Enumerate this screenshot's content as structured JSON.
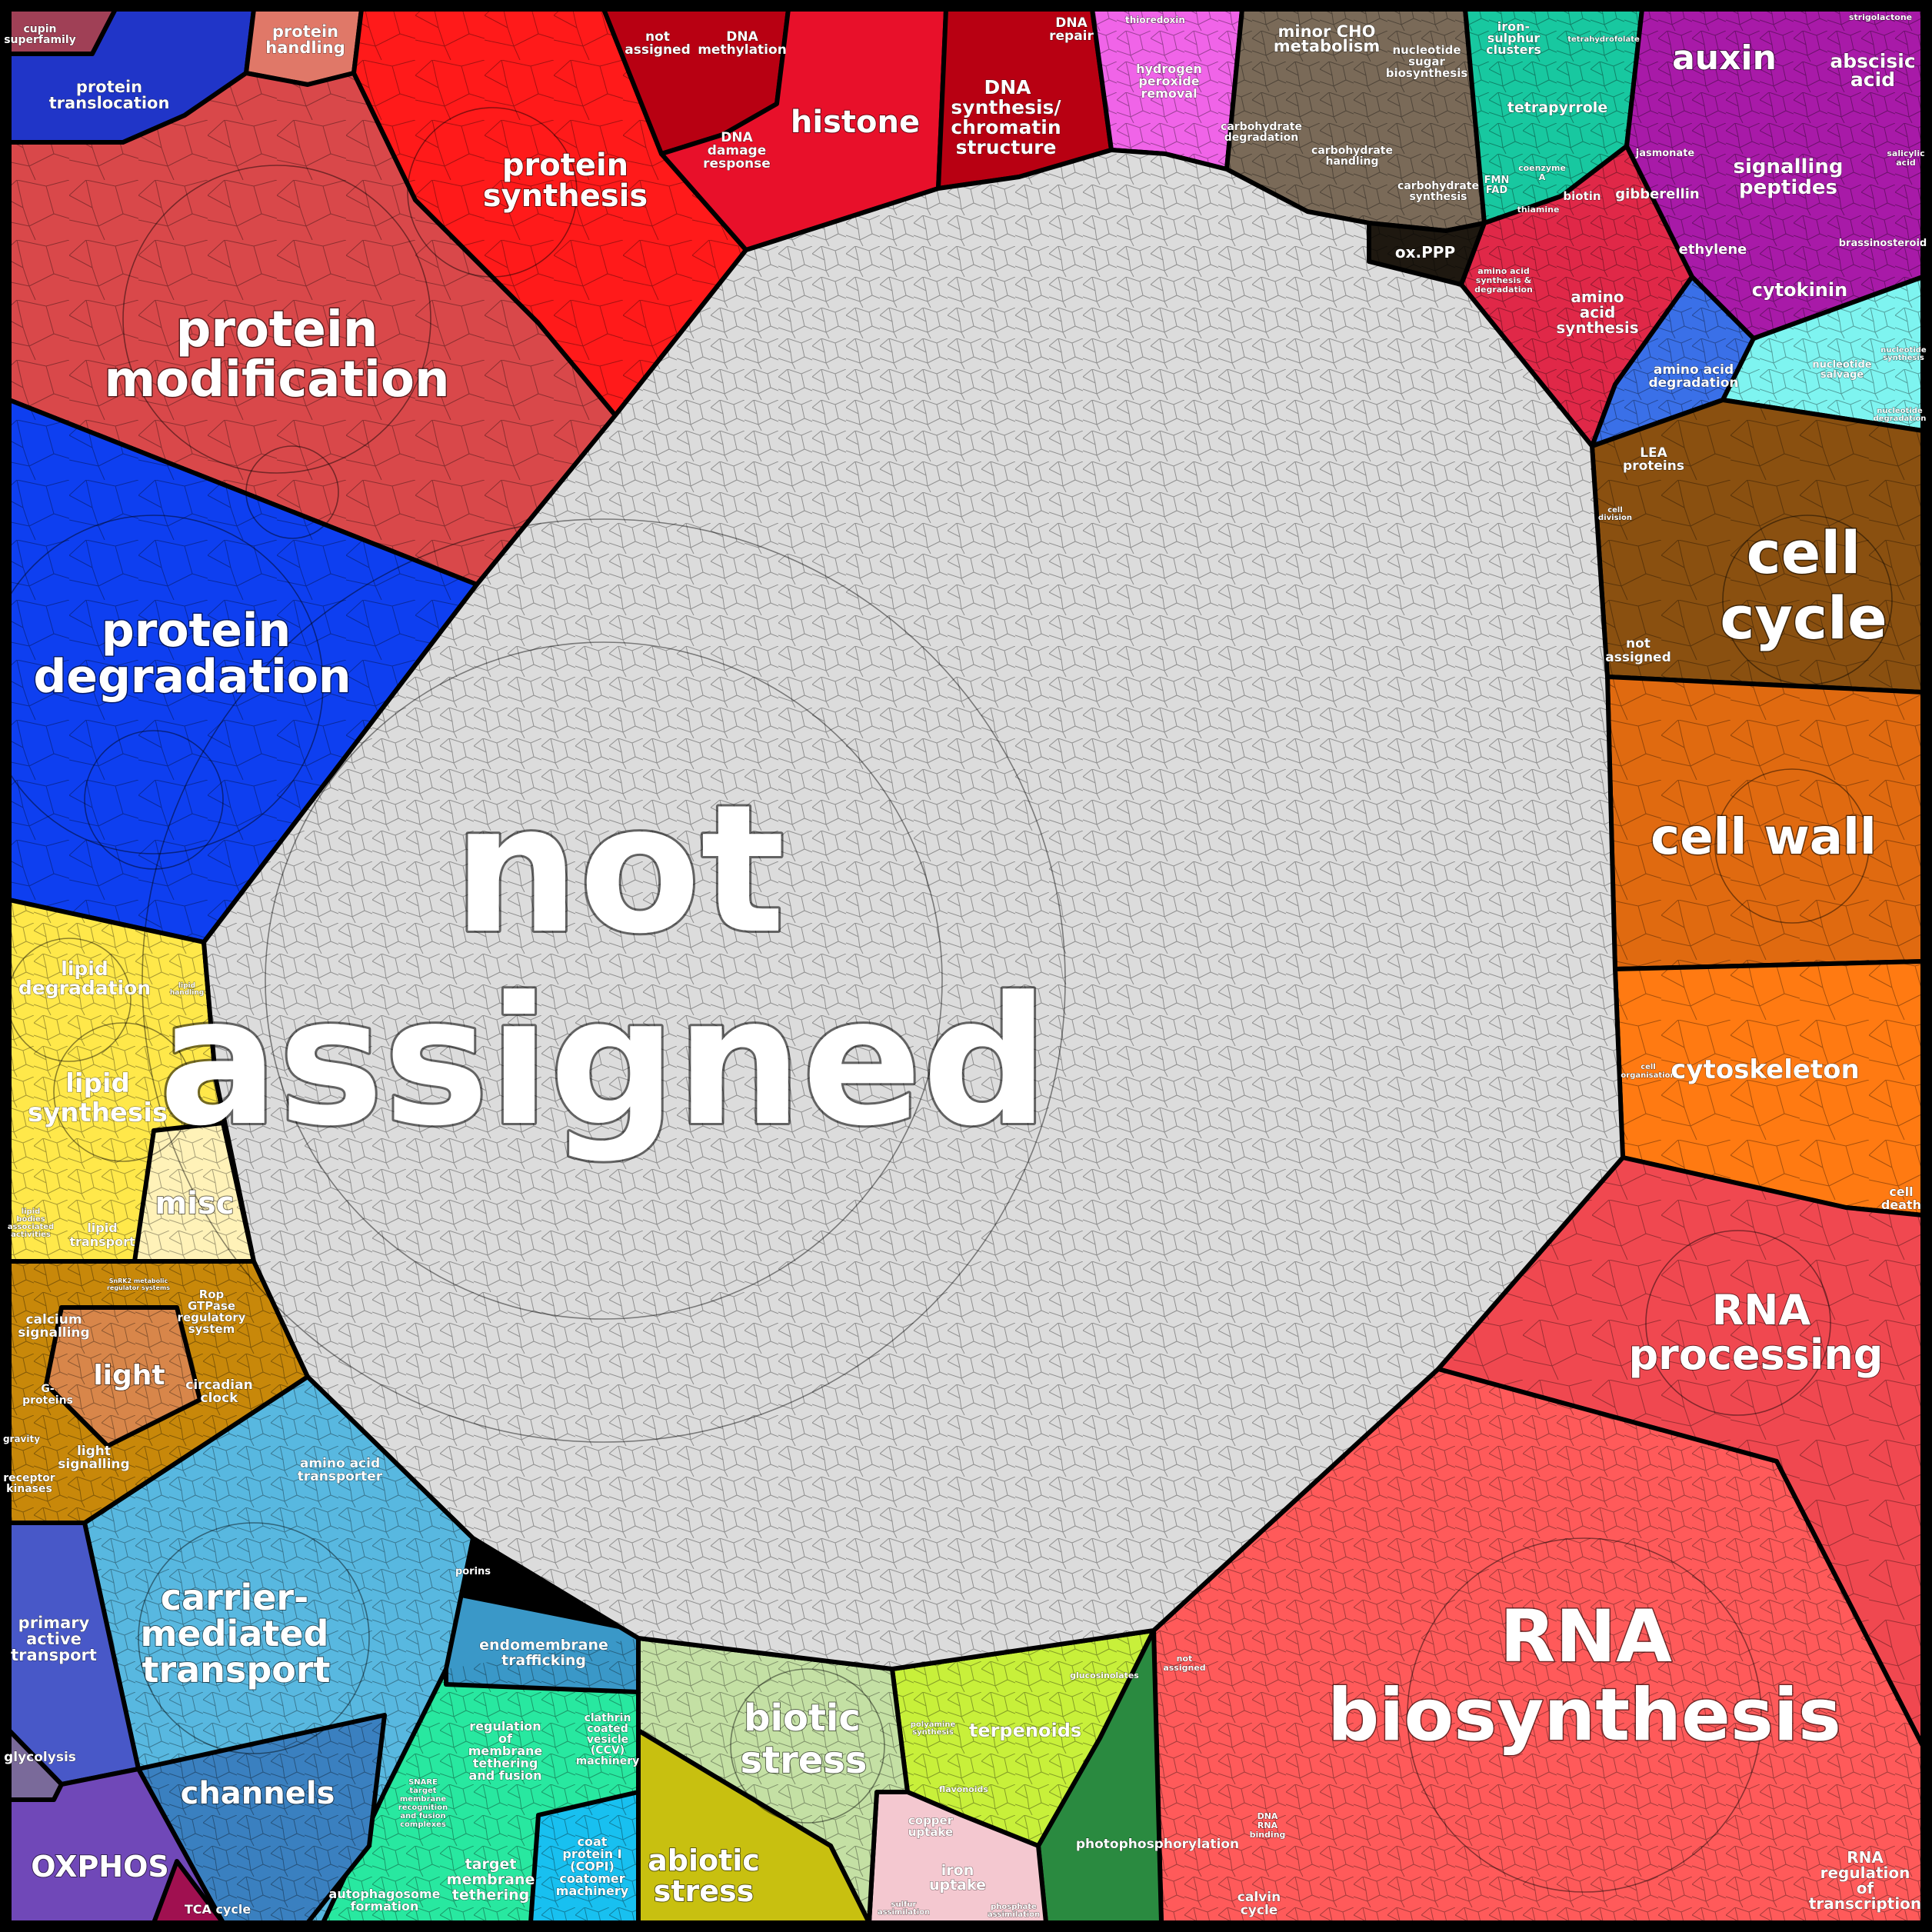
{
  "regions": [
    {
      "id": "not-assigned",
      "color": "#dcdcdc"
    },
    {
      "id": "protein-modification",
      "color": "#d9484a"
    },
    {
      "id": "protein-degradation",
      "color": "#0e3ff0"
    },
    {
      "id": "protein-synthesis",
      "color": "#ff1a1a"
    },
    {
      "id": "histone",
      "color": "#e8102a"
    },
    {
      "id": "dna",
      "color": "#b80012"
    },
    {
      "id": "protein-translocation",
      "color": "#2035c8"
    },
    {
      "id": "protein-handling",
      "color": "#e07868"
    },
    {
      "id": "cupin",
      "color": "#a04056"
    },
    {
      "id": "redox",
      "color": "#f064e8"
    },
    {
      "id": "minor-cho",
      "color": "#7a6a58"
    },
    {
      "id": "ox-ppp",
      "color": "#1e1810"
    },
    {
      "id": "coenzyme",
      "color": "#18c8a0"
    },
    {
      "id": "phytohormone",
      "color": "#a81aa8"
    },
    {
      "id": "amino-acid",
      "color": "#e02848"
    },
    {
      "id": "amino-acid-degradation",
      "color": "#3a70e8"
    },
    {
      "id": "nucleotide",
      "color": "#7ef4f0"
    },
    {
      "id": "cell-cycle",
      "color": "#8a5010"
    },
    {
      "id": "cell-wall",
      "color": "#e06a10"
    },
    {
      "id": "cytoskeleton",
      "color": "#ff7a12"
    },
    {
      "id": "rna-processing",
      "color": "#f04850"
    },
    {
      "id": "rna-biosynthesis",
      "color": "#ff5a5a"
    },
    {
      "id": "photosynthesis",
      "color": "#2a8a40"
    },
    {
      "id": "terpenoids",
      "color": "#c8f03a"
    },
    {
      "id": "secondary",
      "color": "#f4c8d0"
    },
    {
      "id": "biotic-stress",
      "color": "#c4e0a4"
    },
    {
      "id": "abiotic-stress",
      "color": "#c8c010"
    },
    {
      "id": "vesicle",
      "color": "#28e8a0"
    },
    {
      "id": "endomembrane",
      "color": "#3a98c8"
    },
    {
      "id": "coat-protein",
      "color": "#18c0f0"
    },
    {
      "id": "transport",
      "color": "#58b8e0"
    },
    {
      "id": "channels",
      "color": "#3a80c0"
    },
    {
      "id": "primary-transport",
      "color": "#4858c8"
    },
    {
      "id": "oxphos",
      "color": "#7048b8"
    },
    {
      "id": "glycolysis",
      "color": "#7a6a9a"
    },
    {
      "id": "tca",
      "color": "#a01050"
    },
    {
      "id": "signalling",
      "color": "#c8880a"
    },
    {
      "id": "light",
      "color": "#d8864a"
    },
    {
      "id": "lipid",
      "color": "#ffe84a"
    },
    {
      "id": "misc",
      "color": "#fff2b8"
    }
  ],
  "labels": [
    {
      "id": "label-not-assigned-1",
      "text": "not"
    },
    {
      "id": "label-not-assigned-2",
      "text": "assigned"
    },
    {
      "id": "label-protein-modification-1",
      "text": "protein"
    },
    {
      "id": "label-protein-modification-2",
      "text": "modification"
    },
    {
      "id": "label-protein-degradation-1",
      "text": "protein"
    },
    {
      "id": "label-protein-degradation-2",
      "text": "degradation"
    },
    {
      "id": "label-protein-synthesis-1",
      "text": "protein"
    },
    {
      "id": "label-protein-synthesis-2",
      "text": "synthesis"
    },
    {
      "id": "label-histone",
      "text": "histone"
    },
    {
      "id": "label-dna-synthesis-1",
      "text": "DNA"
    },
    {
      "id": "label-dna-synthesis-2",
      "text": "synthesis/"
    },
    {
      "id": "label-dna-synthesis-3",
      "text": "chromatin"
    },
    {
      "id": "label-dna-synthesis-4",
      "text": "structure"
    },
    {
      "id": "label-dna-repair-1",
      "text": "DNA"
    },
    {
      "id": "label-dna-repair-2",
      "text": "repair"
    },
    {
      "id": "label-dna-methylation-1",
      "text": "DNA"
    },
    {
      "id": "label-dna-methylation-2",
      "text": "methylation"
    },
    {
      "id": "label-not-assigned-top-1",
      "text": "not"
    },
    {
      "id": "label-not-assigned-top-2",
      "text": "assigned"
    },
    {
      "id": "label-dna-damage-1",
      "text": "DNA"
    },
    {
      "id": "label-dna-damage-2",
      "text": "damage"
    },
    {
      "id": "label-dna-damage-3",
      "text": "response"
    },
    {
      "id": "label-protein-translocation-1",
      "text": "protein"
    },
    {
      "id": "label-protein-translocation-2",
      "text": "translocation"
    },
    {
      "id": "label-protein-handling-1",
      "text": "protein"
    },
    {
      "id": "label-protein-handling-2",
      "text": "handling"
    },
    {
      "id": "label-cupin-1",
      "text": "cupin"
    },
    {
      "id": "label-cupin-2",
      "text": "superfamily"
    },
    {
      "id": "label-thioredoxin",
      "text": "thioredoxin"
    },
    {
      "id": "label-hydrogen-peroxide-1",
      "text": "hydrogen"
    },
    {
      "id": "label-hydrogen-peroxide-2",
      "text": "peroxide"
    },
    {
      "id": "label-hydrogen-peroxide-3",
      "text": "removal"
    },
    {
      "id": "label-minor-cho-1",
      "text": "minor CHO"
    },
    {
      "id": "label-minor-cho-2",
      "text": "metabolism"
    },
    {
      "id": "label-nucleotide-sugar-1",
      "text": "nucleotide"
    },
    {
      "id": "label-nucleotide-sugar-2",
      "text": "sugar"
    },
    {
      "id": "label-nucleotide-sugar-3",
      "text": "biosynthesis"
    },
    {
      "id": "label-carbohydrate-degradation-1",
      "text": "carbohydrate"
    },
    {
      "id": "label-carbohydrate-degradation-2",
      "text": "degradation"
    },
    {
      "id": "label-carbohydrate-handling-1",
      "text": "carbohydrate"
    },
    {
      "id": "label-carbohydrate-handling-2",
      "text": "handling"
    },
    {
      "id": "label-carbohydrate-synthesis-1",
      "text": "carbohydrate"
    },
    {
      "id": "label-carbohydrate-synthesis-2",
      "text": "synthesis"
    },
    {
      "id": "label-ox-ppp",
      "text": "ox.PPP"
    },
    {
      "id": "label-iron-sulphur-1",
      "text": "iron-"
    },
    {
      "id": "label-iron-sulphur-2",
      "text": "sulphur"
    },
    {
      "id": "label-iron-sulphur-3",
      "text": "clusters"
    },
    {
      "id": "label-tetrahydrofolate",
      "text": "tetrahydrofolate"
    },
    {
      "id": "label-tetrapyrrole",
      "text": "tetrapyrrole"
    },
    {
      "id": "label-coenzyme-a-1",
      "text": "coenzyme"
    },
    {
      "id": "label-coenzyme-a-2",
      "text": "A"
    },
    {
      "id": "label-fmn-fad-1",
      "text": "FMN"
    },
    {
      "id": "label-fmn-fad-2",
      "text": "FAD"
    },
    {
      "id": "label-biotin",
      "text": "biotin"
    },
    {
      "id": "label-thiamine",
      "text": "thiamine"
    },
    {
      "id": "label-auxin",
      "text": "auxin"
    },
    {
      "id": "label-abscisic-1",
      "text": "abscisic"
    },
    {
      "id": "label-abscisic-2",
      "text": "acid"
    },
    {
      "id": "label-strigolactone",
      "text": "strigolactone"
    },
    {
      "id": "label-jasmonate",
      "text": "jasmonate"
    },
    {
      "id": "label-salicylic-1",
      "text": "salicylic"
    },
    {
      "id": "label-salicylic-2",
      "text": "acid"
    },
    {
      "id": "label-signalling-peptides-1",
      "text": "signalling"
    },
    {
      "id": "label-signalling-peptides-2",
      "text": "peptides"
    },
    {
      "id": "label-gibberellin",
      "text": "gibberellin"
    },
    {
      "id": "label-ethylene",
      "text": "ethylene"
    },
    {
      "id": "label-brassinosteroid",
      "text": "brassinosteroid"
    },
    {
      "id": "label-cytokinin",
      "text": "cytokinin"
    },
    {
      "id": "label-amino-acid-synth-deg-1",
      "text": "amino acid"
    },
    {
      "id": "label-amino-acid-synth-deg-2",
      "text": "synthesis &"
    },
    {
      "id": "label-amino-acid-synth-deg-3",
      "text": "degradation"
    },
    {
      "id": "label-amino-acid-synthesis-1",
      "text": "amino"
    },
    {
      "id": "label-amino-acid-synthesis-2",
      "text": "acid"
    },
    {
      "id": "label-amino-acid-synthesis-3",
      "text": "synthesis"
    },
    {
      "id": "label-amino-acid-degradation-1",
      "text": "amino acid"
    },
    {
      "id": "label-amino-acid-degradation-2",
      "text": "degradation"
    },
    {
      "id": "label-nucleotide-salvage-1",
      "text": "nucleotide"
    },
    {
      "id": "label-nucleotide-salvage-2",
      "text": "salvage"
    },
    {
      "id": "label-nucleotide-synthesis-1",
      "text": "nucleotide"
    },
    {
      "id": "label-nucleotide-synthesis-2",
      "text": "synthesis"
    },
    {
      "id": "label-nucleotide-degradation-1",
      "text": "nucleotide"
    },
    {
      "id": "label-nucleotide-degradation-2",
      "text": "degradation"
    },
    {
      "id": "label-lea-1",
      "text": "LEA"
    },
    {
      "id": "label-lea-2",
      "text": "proteins"
    },
    {
      "id": "label-cell-division-1",
      "text": "cell"
    },
    {
      "id": "label-cell-division-2",
      "text": "division"
    },
    {
      "id": "label-cell-cycle-1",
      "text": "cell"
    },
    {
      "id": "label-cell-cycle-2",
      "text": "cycle"
    },
    {
      "id": "label-not-assigned-right-1",
      "text": "not"
    },
    {
      "id": "label-not-assigned-right-2",
      "text": "assigned"
    },
    {
      "id": "label-cell-wall",
      "text": "cell wall"
    },
    {
      "id": "label-cell-organisation-1",
      "text": "cell"
    },
    {
      "id": "label-cell-organisation-2",
      "text": "organisation"
    },
    {
      "id": "label-cytoskeleton",
      "text": "cytoskeleton"
    },
    {
      "id": "label-cell-death-1",
      "text": "cell"
    },
    {
      "id": "label-cell-death-2",
      "text": "death"
    },
    {
      "id": "label-rna-processing-1",
      "text": "RNA"
    },
    {
      "id": "label-rna-processing-2",
      "text": "processing"
    },
    {
      "id": "label-rna-biosynthesis-1",
      "text": "RNA"
    },
    {
      "id": "label-rna-biosynthesis-2",
      "text": "biosynthesis"
    },
    {
      "id": "label-not-assigned-rna-1",
      "text": "not"
    },
    {
      "id": "label-not-assigned-rna-2",
      "text": "assigned"
    },
    {
      "id": "label-dna-binding-1",
      "text": "DNA"
    },
    {
      "id": "label-dna-binding-2",
      "text": "RNA"
    },
    {
      "id": "label-dna-binding-3",
      "text": "binding"
    },
    {
      "id": "label-rna-regulation-1",
      "text": "RNA"
    },
    {
      "id": "label-rna-regulation-2",
      "text": "regulation"
    },
    {
      "id": "label-rna-regulation-3",
      "text": "of"
    },
    {
      "id": "label-rna-regulation-4",
      "text": "transcription"
    },
    {
      "id": "label-photophosphorylation",
      "text": "photophosphorylation"
    },
    {
      "id": "label-calvin-1",
      "text": "calvin"
    },
    {
      "id": "label-calvin-2",
      "text": "cycle"
    },
    {
      "id": "label-glucosinolates",
      "text": "glucosinolates"
    },
    {
      "id": "label-terpenoids",
      "text": "terpenoids"
    },
    {
      "id": "label-polyamine-1",
      "text": "polyamine"
    },
    {
      "id": "label-polyamine-2",
      "text": "synthesis"
    },
    {
      "id": "label-flavonoids",
      "text": "flavonoids"
    },
    {
      "id": "label-copper-1",
      "text": "copper"
    },
    {
      "id": "label-copper-2",
      "text": "uptake"
    },
    {
      "id": "label-iron-uptake-1",
      "text": "iron"
    },
    {
      "id": "label-iron-uptake-2",
      "text": "uptake"
    },
    {
      "id": "label-sulfur-1",
      "text": "sulfur"
    },
    {
      "id": "label-sulfur-2",
      "text": "assimilation"
    },
    {
      "id": "label-phosphate-1",
      "text": "phosphate"
    },
    {
      "id": "label-phosphate-2",
      "text": "assimilation"
    },
    {
      "id": "label-biotic-stress-1",
      "text": "biotic"
    },
    {
      "id": "label-biotic-stress-2",
      "text": "stress"
    },
    {
      "id": "label-abiotic-stress-1",
      "text": "abiotic"
    },
    {
      "id": "label-abiotic-stress-2",
      "text": "stress"
    },
    {
      "id": "label-endomembrane-1",
      "text": "endomembrane"
    },
    {
      "id": "label-endomembrane-2",
      "text": "trafficking"
    },
    {
      "id": "label-clathrin-1",
      "text": "clathrin"
    },
    {
      "id": "label-clathrin-2",
      "text": "coated"
    },
    {
      "id": "label-clathrin-3",
      "text": "vesicle"
    },
    {
      "id": "label-clathrin-4",
      "text": "(CCV)"
    },
    {
      "id": "label-clathrin-5",
      "text": "machinery"
    },
    {
      "id": "label-regulation-membrane-1",
      "text": "regulation"
    },
    {
      "id": "label-regulation-membrane-2",
      "text": "of"
    },
    {
      "id": "label-regulation-membrane-3",
      "text": "membrane"
    },
    {
      "id": "label-regulation-membrane-4",
      "text": "tethering"
    },
    {
      "id": "label-regulation-membrane-5",
      "text": "and fusion"
    },
    {
      "id": "label-snare-1",
      "text": "SNARE"
    },
    {
      "id": "label-snare-2",
      "text": "target"
    },
    {
      "id": "label-snare-3",
      "text": "membrane"
    },
    {
      "id": "label-snare-4",
      "text": "recognition"
    },
    {
      "id": "label-snare-5",
      "text": "and fusion"
    },
    {
      "id": "label-snare-6",
      "text": "complexes"
    },
    {
      "id": "label-coat-protein-1",
      "text": "coat"
    },
    {
      "id": "label-coat-protein-2",
      "text": "protein I"
    },
    {
      "id": "label-coat-protein-3",
      "text": "(COPI)"
    },
    {
      "id": "label-coat-protein-4",
      "text": "coatomer"
    },
    {
      "id": "label-coat-protein-5",
      "text": "machinery"
    },
    {
      "id": "label-target-membrane-1",
      "text": "target"
    },
    {
      "id": "label-target-membrane-2",
      "text": "membrane"
    },
    {
      "id": "label-target-membrane-3",
      "text": "tethering"
    },
    {
      "id": "label-autophagosome-1",
      "text": "autophagosome"
    },
    {
      "id": "label-autophagosome-2",
      "text": "formation"
    },
    {
      "id": "label-porins",
      "text": "porins"
    },
    {
      "id": "label-amino-acid-transporter-1",
      "text": "amino acid"
    },
    {
      "id": "label-amino-acid-transporter-2",
      "text": "transporter"
    },
    {
      "id": "label-carrier-1",
      "text": "carrier-"
    },
    {
      "id": "label-carrier-2",
      "text": "mediated"
    },
    {
      "id": "label-carrier-3",
      "text": "transport"
    },
    {
      "id": "label-channels",
      "text": "channels"
    },
    {
      "id": "label-primary-transport-1",
      "text": "primary"
    },
    {
      "id": "label-primary-transport-2",
      "text": "active"
    },
    {
      "id": "label-primary-transport-3",
      "text": "transport"
    },
    {
      "id": "label-glycolysis",
      "text": "glycolysis"
    },
    {
      "id": "label-oxphos",
      "text": "OXPHOS"
    },
    {
      "id": "label-tca",
      "text": "TCA cycle"
    },
    {
      "id": "label-calcium-1",
      "text": "calcium"
    },
    {
      "id": "label-calcium-2",
      "text": "signalling"
    },
    {
      "id": "label-snrk2-1",
      "text": "SnRK2 metabolic"
    },
    {
      "id": "label-snrk2-2",
      "text": "regulator systems"
    },
    {
      "id": "label-rop-1",
      "text": "Rop"
    },
    {
      "id": "label-rop-2",
      "text": "GTPase"
    },
    {
      "id": "label-rop-3",
      "text": "regulatory"
    },
    {
      "id": "label-rop-4",
      "text": "system"
    },
    {
      "id": "label-light",
      "text": "light"
    },
    {
      "id": "label-g-proteins-1",
      "text": "G-"
    },
    {
      "id": "label-g-proteins-2",
      "text": "proteins"
    },
    {
      "id": "label-circadian-1",
      "text": "circadian"
    },
    {
      "id": "label-circadian-2",
      "text": "clock"
    },
    {
      "id": "label-gravity",
      "text": "gravity"
    },
    {
      "id": "label-light-signalling-1",
      "text": "light"
    },
    {
      "id": "label-light-signalling-2",
      "text": "signalling"
    },
    {
      "id": "label-receptor-kinases-1",
      "text": "receptor"
    },
    {
      "id": "label-receptor-kinases-2",
      "text": "kinases"
    },
    {
      "id": "label-lipid-degradation-1",
      "text": "lipid"
    },
    {
      "id": "label-lipid-degradation-2",
      "text": "degradation"
    },
    {
      "id": "label-lipid-handling-1",
      "text": "lipid"
    },
    {
      "id": "label-lipid-handling-2",
      "text": "handling"
    },
    {
      "id": "label-lipid-synthesis-1",
      "text": "lipid"
    },
    {
      "id": "label-lipid-synthesis-2",
      "text": "synthesis"
    },
    {
      "id": "label-misc",
      "text": "misc"
    },
    {
      "id": "label-lipid-transport-1",
      "text": "lipid"
    },
    {
      "id": "label-lipid-transport-2",
      "text": "transport"
    },
    {
      "id": "label-lipid-bodies-1",
      "text": "lipid"
    },
    {
      "id": "label-lipid-bodies-2",
      "text": "bodies"
    },
    {
      "id": "label-lipid-bodies-3",
      "text": "associated"
    },
    {
      "id": "label-lipid-bodies-4",
      "text": "activities"
    }
  ]
}
